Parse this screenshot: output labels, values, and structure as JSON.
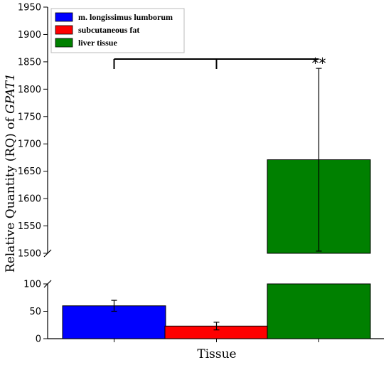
{
  "chart_data": {
    "type": "bar",
    "xlabel": "Tissue",
    "ylabel_prefix": "Relative Quantity (RQ) of ",
    "ylabel_gene": "GPAT1",
    "axis_break": true,
    "upper_ylim": [
      1500,
      1950
    ],
    "upper_yticks": [
      "1500",
      "1550",
      "1600",
      "1650",
      "1700",
      "1750",
      "1800",
      "1850",
      "1900",
      "1950"
    ],
    "lower_ylim": [
      0,
      100
    ],
    "lower_yticks": [
      "0",
      "50",
      "100"
    ],
    "legend_position": "top-left",
    "series": [
      {
        "name": "m. longissimus lumborum",
        "value": 60,
        "error": 10,
        "color": "#0000ff"
      },
      {
        "name": "subcutaneous fat",
        "value": 23,
        "error": 7,
        "color": "#ff0000"
      },
      {
        "name": "liver tissue",
        "value": 1671,
        "error": 167,
        "color": "#008000"
      }
    ],
    "significance": {
      "label": "**"
    }
  }
}
